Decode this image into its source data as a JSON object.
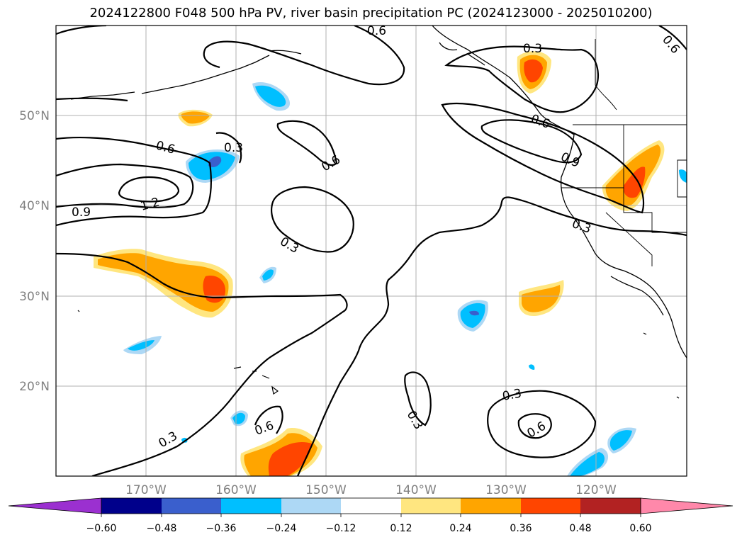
{
  "title": "2024122800 F048 500 hPa PV, river basin precipitation PC (2024123000 - 2025010200)",
  "lat_labels": [
    "50°N",
    "40°N",
    "30°N",
    "20°N"
  ],
  "lon_labels": [
    "170°W",
    "160°W",
    "150°W",
    "140°W",
    "130°W",
    "120°W"
  ],
  "contour_labels": [
    "0.6",
    "0.3",
    "0.6",
    "0.6",
    "1.2",
    "0.9",
    "0.3",
    "0.3",
    "0.6",
    "0.9",
    "0.3",
    "0.3",
    "0.3",
    "0.6",
    "0.3",
    "0.6",
    "0.6"
  ],
  "colorbar": {
    "labels": [
      "−0.60",
      "−0.48",
      "−0.36",
      "−0.24",
      "−0.12",
      "0.12",
      "0.24",
      "0.36",
      "0.48",
      "0.60"
    ],
    "colors": [
      "#9b30d0",
      "#00008b",
      "#3a5fcd",
      "#00bfff",
      "#add8f5",
      "#ffffff",
      "#ffe680",
      "#ffa500",
      "#ff4500",
      "#b22222",
      "#ff88aa"
    ]
  },
  "shading_colors": {
    "yellow": "#ffe680",
    "orange": "#ffa500",
    "red": "#ff4500",
    "lightblue": "#add8f5",
    "blue": "#00bfff",
    "darkblue": "#3a5fcd"
  }
}
